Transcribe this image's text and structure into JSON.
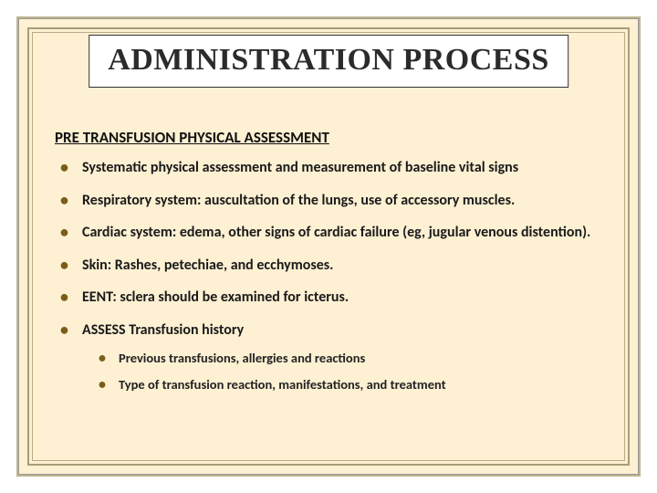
{
  "colors": {
    "page_bg": "#ffffff",
    "panel_bg": "#fdf0d3",
    "border_outer": "#c0b48f",
    "border_inner": "#a89d78",
    "bullet": "#7a5d1a",
    "title_text": "#2b2b2b",
    "body_text": "#1a1a1a"
  },
  "typography": {
    "title_font": "Georgia serif",
    "title_size_pt": 26,
    "title_weight": "bold",
    "body_font": "Calibri sans-serif",
    "subhead_size_pt": 13,
    "bullet_size_pt": 12,
    "subbullet_size_pt": 11
  },
  "title": "ADMINISTRATION PROCESS",
  "subheading": "PRE TRANSFUSION PHYSICAL ASSESSMENT",
  "bullets": [
    "Systematic physical assessment and measurement of baseline vital signs",
    "Respiratory system: auscultation of the lungs, use of accessory muscles.",
    "Cardiac system:  edema, other signs of cardiac failure (eg, jugular venous distention).",
    "Skin:  Rashes, petechiae, and ecchymoses.",
    "EENT: sclera should be examined for icterus.",
    "ASSESS Transfusion history"
  ],
  "sub_bullets": [
    "Previous transfusions, allergies and reactions",
    "Type of transfusion reaction, manifestations, and treatment"
  ]
}
